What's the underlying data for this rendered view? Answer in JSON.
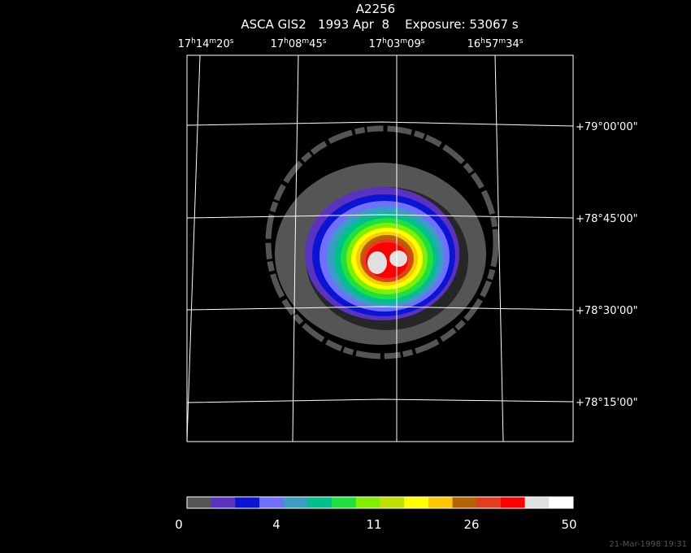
{
  "header": {
    "title": "A2256",
    "subtitle": "ASCA GIS2   1993 Apr  8    Exposure: 53067 s"
  },
  "ra_labels": [
    [
      "17",
      "h",
      "14",
      "m",
      "20",
      "s"
    ],
    [
      "17",
      "h",
      "08",
      "m",
      "45",
      "s"
    ],
    [
      "17",
      "h",
      "03",
      "m",
      "09",
      "s"
    ],
    [
      "16",
      "h",
      "57",
      "m",
      "34",
      "s"
    ]
  ],
  "dec_labels": [
    "+79°00'00\"",
    "+78°45'00\"",
    "+78°30'00\"",
    "+78°15'00\""
  ],
  "colorbar": {
    "ticks": [
      0,
      4,
      11,
      26,
      50
    ],
    "colors": [
      "#555555",
      "#5a32c0",
      "#0a14d2",
      "#7070ff",
      "#3a9ec4",
      "#00c08c",
      "#20e040",
      "#80f000",
      "#c0e000",
      "#ffff00",
      "#ffc800",
      "#b46400",
      "#e63c1e",
      "#ff0000",
      "#e0e0e0",
      "#ffffff"
    ]
  },
  "timestamp": "21-Mar-1998 19:31"
}
